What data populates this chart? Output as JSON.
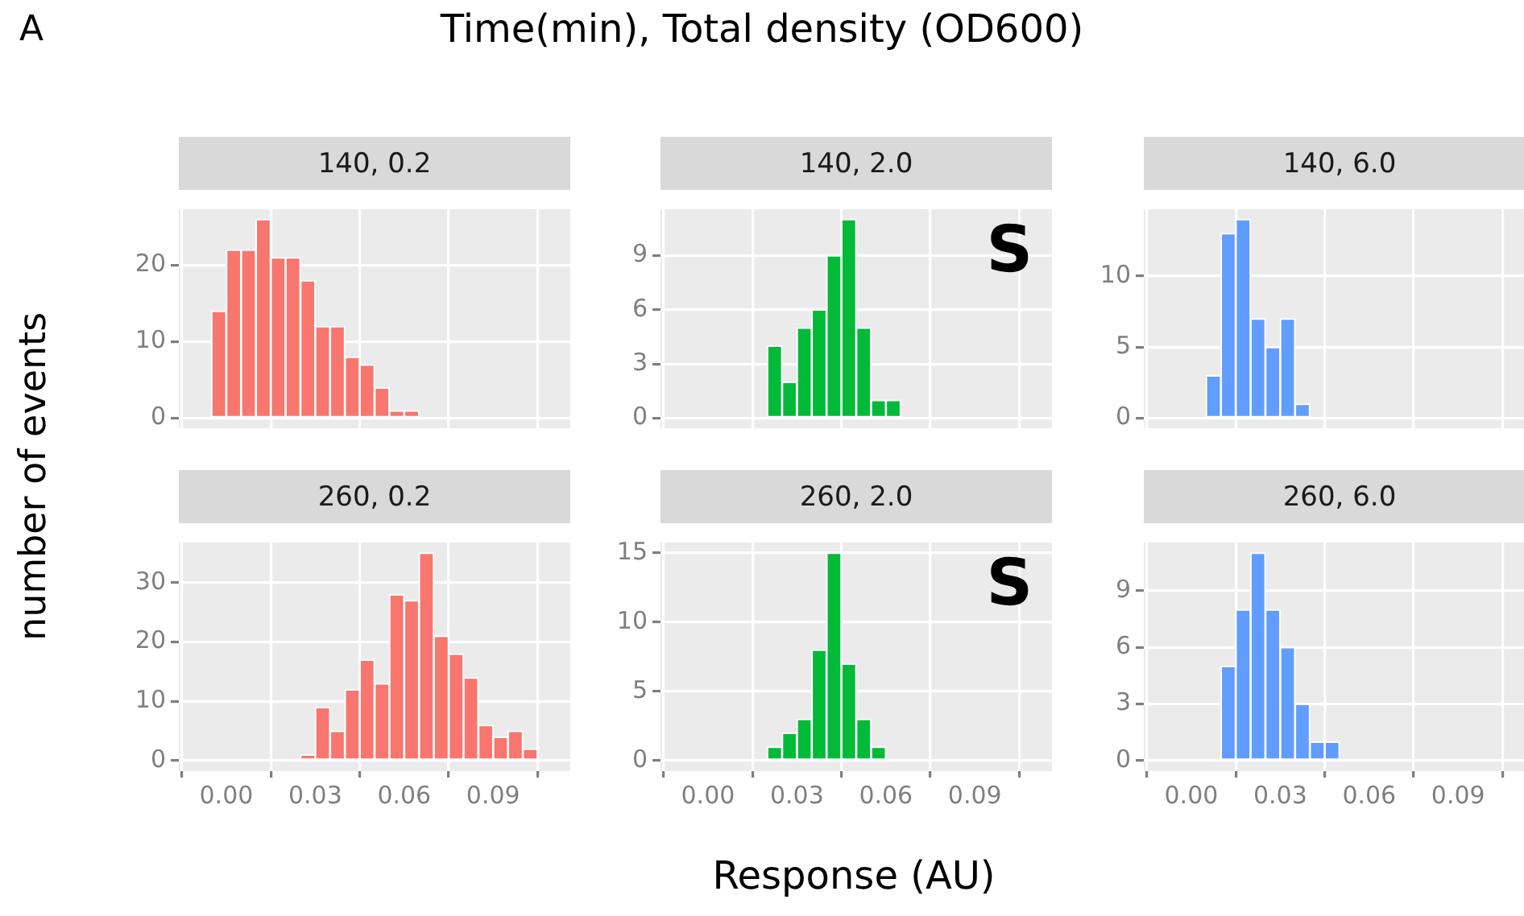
{
  "chart_data": [
    {
      "type": "other",
      "title": "Time(min), Total density (OD600)",
      "annotations": [
        "A"
      ],
      "xlabel": "Response (AU)",
      "ylabel": "number of events"
    },
    {
      "type": "histogram",
      "title": "140, 0.2",
      "color": "#f8766d",
      "bins": [
        -0.01,
        -0.005,
        0,
        0.005,
        0.01,
        0.015,
        0.02,
        0.025,
        0.03,
        0.035,
        0.04,
        0.045,
        0.05,
        0.055,
        0.06,
        0.065,
        0.07,
        0.075,
        0.08,
        0.085,
        0.09,
        0.095,
        0.1,
        0.105,
        0.11
      ],
      "values": [
        0,
        14,
        22,
        22,
        26,
        21,
        21,
        18,
        12,
        12,
        8,
        7,
        4,
        1,
        1,
        0,
        0,
        0,
        0,
        0,
        0,
        0,
        0,
        0
      ],
      "xlim": [
        -0.016,
        0.116
      ],
      "xticks": [
        {
          "value": 0,
          "label": null
        },
        {
          "value": 0.03,
          "label": null
        },
        {
          "value": 0.06,
          "label": null
        },
        {
          "value": 0.09,
          "label": null
        }
      ],
      "ylim": [
        -1.3,
        27.3
      ],
      "yticks": [
        0,
        10,
        20
      ],
      "grid": true,
      "tick_labels": "y"
    },
    {
      "type": "histogram",
      "title": "140, 2.0",
      "color": "#00ba38",
      "bins": [
        -0.01,
        -0.005,
        0,
        0.005,
        0.01,
        0.015,
        0.02,
        0.025,
        0.03,
        0.035,
        0.04,
        0.045,
        0.05,
        0.055,
        0.06,
        0.065,
        0.07,
        0.075,
        0.08,
        0.085,
        0.09,
        0.095,
        0.1,
        0.105,
        0.11
      ],
      "values": [
        0,
        0,
        0,
        0,
        0,
        0,
        4,
        2,
        5,
        6,
        9,
        11,
        5,
        1,
        1,
        0,
        0,
        0,
        0,
        0,
        0,
        0,
        0,
        0
      ],
      "xlim": [
        -0.016,
        0.116
      ],
      "xticks": [
        {
          "value": 0,
          "label": null
        },
        {
          "value": 0.03,
          "label": null
        },
        {
          "value": 0.06,
          "label": null
        },
        {
          "value": 0.09,
          "label": null
        }
      ],
      "ylim": [
        -0.55,
        11.55
      ],
      "yticks": [
        0,
        3,
        6,
        9
      ],
      "grid": true,
      "tick_labels": "y",
      "annotations": [
        "S"
      ]
    },
    {
      "type": "histogram",
      "title": "140, 6.0",
      "color": "#619cff",
      "bins": [
        -0.01,
        -0.005,
        0,
        0.005,
        0.01,
        0.015,
        0.02,
        0.025,
        0.03,
        0.035,
        0.04,
        0.045,
        0.05,
        0.055,
        0.06,
        0.065,
        0.07,
        0.075,
        0.08,
        0.085,
        0.09,
        0.095,
        0.1,
        0.105,
        0.11
      ],
      "values": [
        0,
        0,
        0,
        3,
        13,
        14,
        7,
        5,
        7,
        1,
        0,
        0,
        0,
        0,
        0,
        0,
        0,
        0,
        0,
        0,
        0,
        0,
        0,
        0
      ],
      "xlim": [
        -0.016,
        0.116
      ],
      "xticks": [
        {
          "value": 0,
          "label": null
        },
        {
          "value": 0.03,
          "label": null
        },
        {
          "value": 0.06,
          "label": null
        },
        {
          "value": 0.09,
          "label": null
        }
      ],
      "ylim": [
        -0.7,
        14.7
      ],
      "yticks": [
        0,
        5,
        10
      ],
      "grid": true,
      "tick_labels": "y"
    },
    {
      "type": "histogram",
      "title": "260, 0.2",
      "color": "#f8766d",
      "bins": [
        -0.01,
        -0.005,
        0,
        0.005,
        0.01,
        0.015,
        0.02,
        0.025,
        0.03,
        0.035,
        0.04,
        0.045,
        0.05,
        0.055,
        0.06,
        0.065,
        0.07,
        0.075,
        0.08,
        0.085,
        0.09,
        0.095,
        0.1,
        0.105,
        0.11
      ],
      "values": [
        0,
        0,
        0,
        0,
        0,
        0,
        0,
        1,
        9,
        5,
        12,
        17,
        13,
        28,
        27,
        35,
        21,
        18,
        14,
        6,
        4,
        5,
        2,
        0
      ],
      "xlim": [
        -0.016,
        0.116
      ],
      "xticks": [
        {
          "value": 0,
          "label": "0.00"
        },
        {
          "value": 0.03,
          "label": "0.03"
        },
        {
          "value": 0.06,
          "label": "0.06"
        },
        {
          "value": 0.09,
          "label": "0.09"
        }
      ],
      "ylim": [
        -1.75,
        36.75
      ],
      "yticks": [
        0,
        10,
        20,
        30
      ],
      "grid": true
    },
    {
      "type": "histogram",
      "title": "260, 2.0",
      "color": "#00ba38",
      "bins": [
        -0.01,
        -0.005,
        0,
        0.005,
        0.01,
        0.015,
        0.02,
        0.025,
        0.03,
        0.035,
        0.04,
        0.045,
        0.05,
        0.055,
        0.06,
        0.065,
        0.07,
        0.075,
        0.08,
        0.085,
        0.09,
        0.095,
        0.1,
        0.105,
        0.11
      ],
      "values": [
        0,
        0,
        0,
        0,
        0,
        0,
        1,
        2,
        3,
        8,
        15,
        7,
        3,
        1,
        0,
        0,
        0,
        0,
        0,
        0,
        0,
        0,
        0,
        0
      ],
      "xlim": [
        -0.016,
        0.116
      ],
      "xticks": [
        {
          "value": 0,
          "label": "0.00"
        },
        {
          "value": 0.03,
          "label": "0.03"
        },
        {
          "value": 0.06,
          "label": "0.06"
        },
        {
          "value": 0.09,
          "label": "0.09"
        }
      ],
      "ylim": [
        -0.75,
        15.75
      ],
      "yticks": [
        0,
        5,
        10,
        15
      ],
      "grid": true,
      "annotations": [
        "S"
      ]
    },
    {
      "type": "histogram",
      "title": "260, 6.0",
      "color": "#619cff",
      "bins": [
        -0.01,
        -0.005,
        0,
        0.005,
        0.01,
        0.015,
        0.02,
        0.025,
        0.03,
        0.035,
        0.04,
        0.045,
        0.05,
        0.055,
        0.06,
        0.065,
        0.07,
        0.075,
        0.08,
        0.085,
        0.09,
        0.095,
        0.1,
        0.105,
        0.11
      ],
      "values": [
        0,
        0,
        0,
        0,
        5,
        8,
        11,
        8,
        6,
        3,
        1,
        1,
        0,
        0,
        0,
        0,
        0,
        0,
        0,
        0,
        0,
        0,
        0,
        0
      ],
      "xlim": [
        -0.016,
        0.116
      ],
      "xticks": [
        {
          "value": 0,
          "label": "0.00"
        },
        {
          "value": 0.03,
          "label": "0.03"
        },
        {
          "value": 0.06,
          "label": "0.06"
        },
        {
          "value": 0.09,
          "label": "0.09"
        }
      ],
      "ylim": [
        -0.55,
        11.55
      ],
      "yticks": [
        0,
        3,
        6,
        9
      ],
      "grid": true
    }
  ]
}
